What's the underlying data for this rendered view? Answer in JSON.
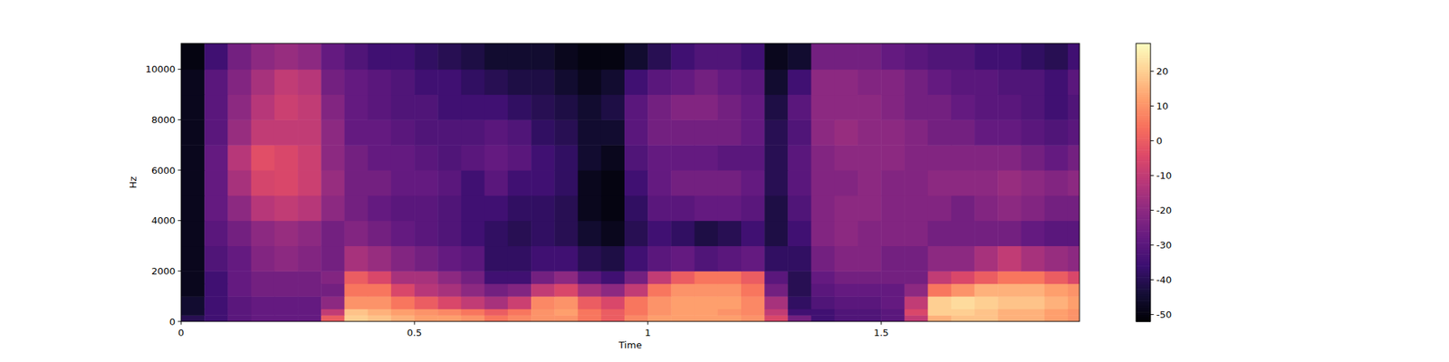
{
  "chart_data": {
    "type": "heatmap",
    "x_label": "Time",
    "y_label": "Hz",
    "xlim": [
      0,
      1.925
    ],
    "ylim": [
      0,
      11025
    ],
    "xticks": [
      0,
      0.5,
      1,
      1.5
    ],
    "yticks": [
      0,
      2000,
      4000,
      6000,
      8000,
      10000
    ],
    "x_bins": [
      0,
      0.05,
      0.1,
      0.15,
      0.2,
      0.25,
      0.3,
      0.35,
      0.4,
      0.45,
      0.5,
      0.55,
      0.6,
      0.65,
      0.7,
      0.75,
      0.8,
      0.85,
      0.9,
      0.95,
      1,
      1.05,
      1.1,
      1.15,
      1.2,
      1.25,
      1.3,
      1.35,
      1.4,
      1.45,
      1.5,
      1.55,
      1.6,
      1.65,
      1.7,
      1.75,
      1.8,
      1.85,
      1.9,
      1.925
    ],
    "y_bins": [
      0,
      250,
      500,
      1000,
      1500,
      2000,
      3000,
      4000,
      5000,
      6000,
      7000,
      8000,
      9000,
      10000,
      11025
    ],
    "cells": [
      [
        -40,
        -35,
        -30,
        -28,
        -28,
        -28,
        0,
        20,
        18,
        15,
        12,
        12,
        10,
        5,
        8,
        10,
        10,
        5,
        0,
        8,
        12,
        12,
        12,
        12,
        10,
        -5,
        -25,
        -35,
        -32,
        -32,
        -30,
        -10,
        15,
        18,
        18,
        15,
        15,
        12,
        10
      ],
      [
        -45,
        -35,
        -30,
        -28,
        -28,
        -28,
        -10,
        18,
        15,
        12,
        10,
        8,
        5,
        0,
        5,
        10,
        12,
        5,
        0,
        5,
        10,
        12,
        12,
        10,
        8,
        -10,
        -35,
        -35,
        -32,
        -32,
        -30,
        -5,
        20,
        20,
        18,
        15,
        15,
        12,
        10
      ],
      [
        -45,
        -35,
        -30,
        -28,
        -28,
        -28,
        -20,
        10,
        10,
        5,
        0,
        -5,
        -10,
        -15,
        -8,
        8,
        10,
        0,
        -5,
        5,
        10,
        12,
        12,
        12,
        8,
        -15,
        -38,
        -32,
        -30,
        -30,
        -28,
        -10,
        20,
        22,
        20,
        18,
        18,
        15,
        12
      ],
      [
        -48,
        -35,
        -28,
        -25,
        -25,
        -25,
        -25,
        5,
        5,
        -5,
        -12,
        -15,
        -20,
        -25,
        -22,
        -10,
        -5,
        -15,
        -20,
        -10,
        5,
        10,
        10,
        10,
        5,
        -25,
        -40,
        -30,
        -28,
        -28,
        -28,
        -20,
        5,
        10,
        15,
        15,
        15,
        12,
        10
      ],
      [
        -48,
        -35,
        -28,
        -25,
        -25,
        -25,
        -22,
        0,
        -5,
        -15,
        -15,
        -20,
        -25,
        -35,
        -35,
        -25,
        -20,
        -30,
        -35,
        -25,
        -10,
        0,
        5,
        5,
        0,
        -30,
        -40,
        -28,
        -25,
        -25,
        -25,
        -25,
        -10,
        -5,
        0,
        5,
        5,
        0,
        -5
      ],
      [
        -48,
        -32,
        -28,
        -22,
        -20,
        -22,
        -25,
        -15,
        -18,
        -22,
        -25,
        -28,
        -30,
        -38,
        -38,
        -35,
        -35,
        -40,
        -42,
        -35,
        -30,
        -28,
        -32,
        -30,
        -28,
        -38,
        -38,
        -25,
        -22,
        -22,
        -25,
        -25,
        -20,
        -20,
        -15,
        -10,
        -15,
        -18,
        -20
      ],
      [
        -48,
        -30,
        -25,
        -20,
        -18,
        -20,
        -25,
        -22,
        -25,
        -28,
        -30,
        -32,
        -35,
        -38,
        -40,
        -38,
        -40,
        -45,
        -48,
        -40,
        -35,
        -38,
        -42,
        -40,
        -35,
        -42,
        -35,
        -22,
        -20,
        -22,
        -22,
        -22,
        -25,
        -25,
        -25,
        -25,
        -28,
        -30,
        -30
      ],
      [
        -48,
        -28,
        -20,
        -12,
        -10,
        -12,
        -20,
        -25,
        -28,
        -30,
        -30,
        -32,
        -35,
        -35,
        -38,
        -38,
        -40,
        -48,
        -50,
        -38,
        -30,
        -30,
        -28,
        -28,
        -30,
        -42,
        -32,
        -22,
        -20,
        -20,
        -22,
        -22,
        -22,
        -25,
        -22,
        -20,
        -22,
        -25,
        -25
      ],
      [
        -48,
        -28,
        -15,
        -6,
        -5,
        -8,
        -18,
        -25,
        -25,
        -28,
        -28,
        -30,
        -35,
        -30,
        -35,
        -35,
        -38,
        -48,
        -50,
        -35,
        -28,
        -25,
        -25,
        -25,
        -28,
        -40,
        -30,
        -22,
        -22,
        -20,
        -22,
        -22,
        -20,
        -20,
        -20,
        -18,
        -20,
        -22,
        -20
      ],
      [
        -48,
        -28,
        -12,
        -3,
        -5,
        -8,
        -20,
        -25,
        -28,
        -28,
        -30,
        -32,
        -30,
        -28,
        -30,
        -35,
        -38,
        -45,
        -48,
        -32,
        -28,
        -28,
        -28,
        -30,
        -30,
        -40,
        -30,
        -22,
        -20,
        -20,
        -20,
        -22,
        -22,
        -22,
        -22,
        -22,
        -25,
        -28,
        -25
      ],
      [
        -48,
        -30,
        -18,
        -10,
        -10,
        -10,
        -20,
        -28,
        -28,
        -30,
        -32,
        -32,
        -32,
        -30,
        -32,
        -38,
        -40,
        -45,
        -45,
        -30,
        -25,
        -25,
        -25,
        -25,
        -28,
        -40,
        -32,
        -20,
        -18,
        -20,
        -20,
        -22,
        -25,
        -25,
        -28,
        -28,
        -30,
        -32,
        -30
      ],
      [
        -48,
        -30,
        -20,
        -12,
        -8,
        -10,
        -22,
        -28,
        -30,
        -32,
        -32,
        -35,
        -35,
        -35,
        -38,
        -40,
        -42,
        -45,
        -42,
        -30,
        -25,
        -22,
        -22,
        -25,
        -28,
        -42,
        -30,
        -20,
        -20,
        -20,
        -22,
        -25,
        -25,
        -28,
        -30,
        -30,
        -32,
        -35,
        -32
      ],
      [
        -48,
        -30,
        -22,
        -15,
        -10,
        -12,
        -25,
        -28,
        -30,
        -32,
        -35,
        -35,
        -38,
        -40,
        -42,
        -42,
        -45,
        -48,
        -45,
        -35,
        -30,
        -28,
        -25,
        -28,
        -30,
        -45,
        -35,
        -20,
        -20,
        -22,
        -22,
        -25,
        -28,
        -30,
        -30,
        -32,
        -32,
        -35,
        -30
      ],
      [
        -50,
        -35,
        -25,
        -20,
        -18,
        -20,
        -28,
        -32,
        -35,
        -35,
        -38,
        -40,
        -42,
        -45,
        -45,
        -45,
        -48,
        -50,
        -50,
        -45,
        -40,
        -35,
        -32,
        -32,
        -35,
        -48,
        -45,
        -25,
        -25,
        -25,
        -28,
        -30,
        -32,
        -32,
        -35,
        -35,
        -38,
        -40,
        -35
      ]
    ],
    "colorbar": {
      "range": [
        -52,
        28
      ],
      "ticks": [
        -50,
        -40,
        -30,
        -20,
        -10,
        0,
        10,
        20
      ]
    }
  }
}
